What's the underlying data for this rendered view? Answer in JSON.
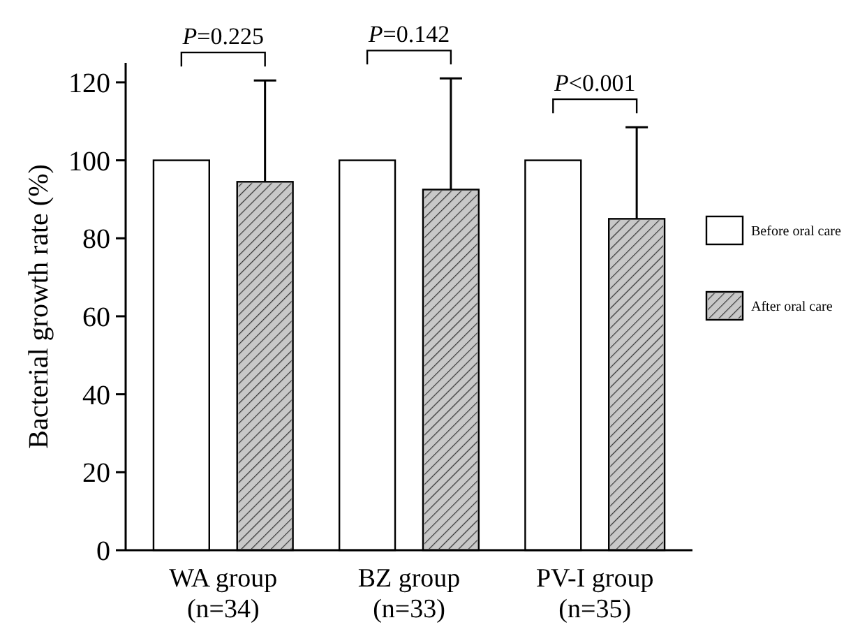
{
  "chart_data": {
    "type": "bar",
    "ylabel": "Bacterial growth rate (%)",
    "categories": [
      "WA group\n(n=34)",
      "BZ group\n(n=33)",
      "PV-I group\n(n=35)"
    ],
    "series": [
      {
        "name": "Before oral care",
        "color": "#ffffff",
        "values": [
          100,
          100,
          100
        ]
      },
      {
        "name": "After oral care",
        "color": "#c8c8c8",
        "values": [
          94.5,
          92.5,
          85
        ],
        "errors": [
          [
            94.5,
            120.5
          ],
          [
            92.5,
            121
          ],
          [
            85,
            108.5
          ]
        ]
      }
    ],
    "ylim": [
      0,
      125
    ],
    "yticks": [
      0,
      20,
      40,
      60,
      80,
      100,
      120
    ],
    "legend": "right",
    "grid": false,
    "annotations": [
      "P=0.225",
      "P=0.142",
      "P<0.001"
    ]
  }
}
